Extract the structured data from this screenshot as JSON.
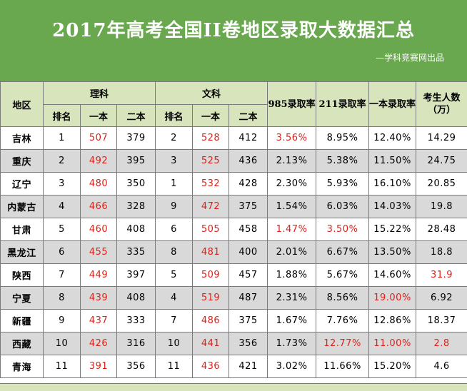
{
  "header": {
    "title": "2017年高考全国II卷地区录取大数据汇总",
    "subtitle": "—学科竞赛网出品"
  },
  "columns": {
    "region": "地区",
    "science": "理科",
    "arts": "文科",
    "rank": "排名",
    "tier1": "一本",
    "tier2": "二本",
    "rate985": "985录取率",
    "rate211": "211录取率",
    "rate_tier1": "一本录取率",
    "examinees": "考生人数（万）"
  },
  "rows": [
    {
      "region": "吉林",
      "sci_rank": "1",
      "sci_t1": "507",
      "sci_t2": "379",
      "art_rank": "2",
      "art_t1": "528",
      "art_t2": "412",
      "r985": "3.56%",
      "r211": "8.95%",
      "rt1": "12.40%",
      "exam": "14.29"
    },
    {
      "region": "重庆",
      "sci_rank": "2",
      "sci_t1": "492",
      "sci_t2": "395",
      "art_rank": "3",
      "art_t1": "525",
      "art_t2": "436",
      "r985": "2.13%",
      "r211": "5.38%",
      "rt1": "11.50%",
      "exam": "24.75"
    },
    {
      "region": "辽宁",
      "sci_rank": "3",
      "sci_t1": "480",
      "sci_t2": "350",
      "art_rank": "1",
      "art_t1": "532",
      "art_t2": "428",
      "r985": "2.30%",
      "r211": "5.93%",
      "rt1": "16.10%",
      "exam": "20.85"
    },
    {
      "region": "内蒙古",
      "sci_rank": "4",
      "sci_t1": "466",
      "sci_t2": "328",
      "art_rank": "9",
      "art_t1": "472",
      "art_t2": "375",
      "r985": "1.54%",
      "r211": "6.03%",
      "rt1": "14.03%",
      "exam": "19.8"
    },
    {
      "region": "甘肃",
      "sci_rank": "5",
      "sci_t1": "460",
      "sci_t2": "408",
      "art_rank": "6",
      "art_t1": "505",
      "art_t2": "458",
      "r985": "1.47%",
      "r211": "3.50%",
      "rt1": "15.22%",
      "exam": "28.48"
    },
    {
      "region": "黑龙江",
      "sci_rank": "6",
      "sci_t1": "455",
      "sci_t2": "335",
      "art_rank": "8",
      "art_t1": "481",
      "art_t2": "400",
      "r985": "2.01%",
      "r211": "6.67%",
      "rt1": "13.50%",
      "exam": "18.8"
    },
    {
      "region": "陕西",
      "sci_rank": "7",
      "sci_t1": "449",
      "sci_t2": "397",
      "art_rank": "5",
      "art_t1": "509",
      "art_t2": "457",
      "r985": "1.88%",
      "r211": "5.67%",
      "rt1": "14.60%",
      "exam": "31.9"
    },
    {
      "region": "宁夏",
      "sci_rank": "8",
      "sci_t1": "439",
      "sci_t2": "408",
      "art_rank": "4",
      "art_t1": "519",
      "art_t2": "487",
      "r985": "2.31%",
      "r211": "8.56%",
      "rt1": "19.00%",
      "exam": "6.92"
    },
    {
      "region": "新疆",
      "sci_rank": "9",
      "sci_t1": "437",
      "sci_t2": "333",
      "art_rank": "7",
      "art_t1": "486",
      "art_t2": "375",
      "r985": "1.67%",
      "r211": "7.76%",
      "rt1": "12.86%",
      "exam": "18.37"
    },
    {
      "region": "西藏",
      "sci_rank": "10",
      "sci_t1": "426",
      "sci_t2": "316",
      "art_rank": "10",
      "art_t1": "441",
      "art_t2": "356",
      "r985": "1.73%",
      "r211": "12.77%",
      "rt1": "11.00%",
      "exam": "2.8"
    },
    {
      "region": "青海",
      "sci_rank": "11",
      "sci_t1": "391",
      "sci_t2": "356",
      "art_rank": "11",
      "art_t1": "436",
      "art_t2": "421",
      "r985": "3.02%",
      "r211": "11.66%",
      "rt1": "15.20%",
      "exam": "4.6"
    }
  ],
  "highlighted_cells": [
    "rows.*.sci_t1",
    "rows.*.art_t1",
    "rows.0.r985",
    "rows.4.r985",
    "rows.4.r211",
    "rows.9.r211",
    "rows.7.rt1",
    "rows.9.rt1",
    "rows.6.exam",
    "rows.9.exam"
  ],
  "colors": {
    "banner": "#6aa84f",
    "header_fill": "#d8e4bc",
    "alt_row": "#d9d9d9",
    "highlight_text": "#e0201a"
  }
}
